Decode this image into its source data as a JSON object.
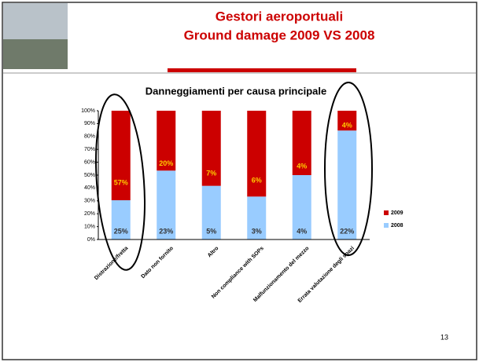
{
  "header": {
    "title": "Gestori aeroportuali",
    "subtitle": "Ground damage 2009 VS 2008"
  },
  "page_number": "13",
  "chart_data": {
    "type": "bar",
    "stacked": "percent",
    "title": "Danneggiamenti per causa principale",
    "categories": [
      "Distrazione/fretta",
      "Dato non fornito",
      "Altro",
      "Non compliance with SOPs",
      "Malfunzionamento del mezzo",
      "Errata valutazione degli spazi"
    ],
    "series": [
      {
        "name": "2008",
        "color": "#99ccff",
        "values": [
          25,
          23,
          5,
          3,
          4,
          22
        ],
        "value_labels": [
          "25%",
          "23%",
          "5%",
          "3%",
          "4%",
          "22%"
        ]
      },
      {
        "name": "2009",
        "color": "#cc0000",
        "values": [
          57,
          20,
          7,
          6,
          4,
          4
        ],
        "value_labels": [
          "57%",
          "20%",
          "7%",
          "6%",
          "4%",
          "4%"
        ]
      }
    ],
    "ylim": [
      0,
      100
    ],
    "yticks": [
      {
        "value": 0,
        "label": "0%"
      },
      {
        "value": 10,
        "label": "10%"
      },
      {
        "value": 20,
        "label": "20%"
      },
      {
        "value": 30,
        "label": "30%"
      },
      {
        "value": 40,
        "label": "40%"
      },
      {
        "value": 50,
        "label": "50%"
      },
      {
        "value": 60,
        "label": "60%"
      },
      {
        "value": 70,
        "label": "70%"
      },
      {
        "value": 80,
        "label": "80%"
      },
      {
        "value": 90,
        "label": "90%"
      },
      {
        "value": 100,
        "label": "100%"
      }
    ],
    "legend": "right"
  }
}
